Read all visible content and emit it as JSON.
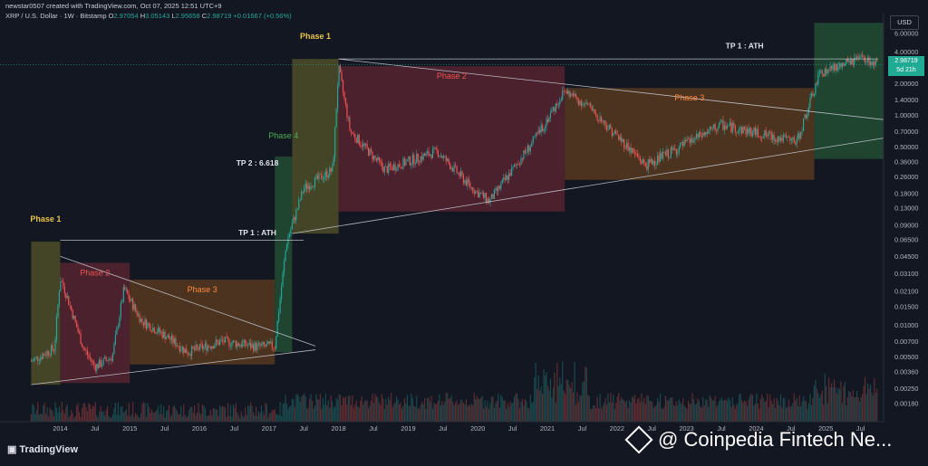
{
  "header": {
    "published": "newstar0507 created with TradingView.com, Oct 07, 2025 12:51 UTC+9",
    "symbol": "XRP / U.S. Dollar · 1W · Bitstamp",
    "open_label": "O",
    "open": "2.97054",
    "high_label": "H",
    "high": "3.05143",
    "low_label": "L",
    "low": "2.95658",
    "close_label": "C",
    "close": "2.98719",
    "change": "+0.01667 (+0.56%)"
  },
  "currency_button": "USD",
  "last_price": "2.98719",
  "countdown": "5d 21h",
  "footer": {
    "logo": "TradingView"
  },
  "watermark": "@ Coinpedia Fintech Ne...",
  "colors": {
    "up": "#26a69a",
    "down": "#ef5350",
    "background": "#131722",
    "phase1": "#6b6b2a",
    "phase2": "#7a2a38",
    "phase3": "#7a4a1e",
    "phase4": "#2a6a3c"
  },
  "chart_data": {
    "type": "candlestick",
    "title": "",
    "xlabel": "",
    "ylabel": "",
    "y_scale": "log",
    "ylim": [
      0.0012,
      8.0
    ],
    "y_ticks": [
      "6.00000",
      "4.00000",
      "2.98719",
      "2.00000",
      "1.40000",
      "1.00000",
      "0.70000",
      "0.50000",
      "0.36000",
      "0.26000",
      "0.18000",
      "0.13000",
      "0.09000",
      "0.06500",
      "0.04500",
      "0.03100",
      "0.02100",
      "0.01500",
      "0.01000",
      "0.00700",
      "0.00500",
      "0.00360",
      "0.00250",
      "0.00180"
    ],
    "x_ticks": [
      "2014",
      "Jul",
      "2015",
      "Jul",
      "2016",
      "Jul",
      "2017",
      "Jul",
      "2018",
      "Jul",
      "2019",
      "Jul",
      "2020",
      "Jul",
      "2021",
      "Jul",
      "2022",
      "Jul",
      "2023",
      "Jul",
      "2024",
      "Jul",
      "2025",
      "Jul"
    ],
    "price_path": [
      {
        "date": "2013-08",
        "price": 0.0045
      },
      {
        "date": "2013-12",
        "price": 0.006
      },
      {
        "date": "2014-01",
        "price": 0.028
      },
      {
        "date": "2014-02",
        "price": 0.02
      },
      {
        "date": "2014-05",
        "price": 0.006
      },
      {
        "date": "2014-07",
        "price": 0.004
      },
      {
        "date": "2014-10",
        "price": 0.005
      },
      {
        "date": "2014-12",
        "price": 0.022
      },
      {
        "date": "2015-03",
        "price": 0.011
      },
      {
        "date": "2015-07",
        "price": 0.008
      },
      {
        "date": "2015-11",
        "price": 0.0055
      },
      {
        "date": "2016-05",
        "price": 0.007
      },
      {
        "date": "2016-11",
        "price": 0.0062
      },
      {
        "date": "2017-02",
        "price": 0.0063
      },
      {
        "date": "2017-04",
        "price": 0.06
      },
      {
        "date": "2017-07",
        "price": 0.2
      },
      {
        "date": "2017-12",
        "price": 0.3
      },
      {
        "date": "2018-01",
        "price": 2.8
      },
      {
        "date": "2018-03",
        "price": 0.7
      },
      {
        "date": "2018-09",
        "price": 0.3
      },
      {
        "date": "2019-06",
        "price": 0.45
      },
      {
        "date": "2019-12",
        "price": 0.2
      },
      {
        "date": "2020-03",
        "price": 0.15
      },
      {
        "date": "2020-11",
        "price": 0.6
      },
      {
        "date": "2021-04",
        "price": 1.7
      },
      {
        "date": "2021-08",
        "price": 1.2
      },
      {
        "date": "2022-06",
        "price": 0.33
      },
      {
        "date": "2023-07",
        "price": 0.8
      },
      {
        "date": "2024-08",
        "price": 0.55
      },
      {
        "date": "2024-12",
        "price": 2.5
      },
      {
        "date": "2025-07",
        "price": 3.4
      },
      {
        "date": "2025-10",
        "price": 2.98719
      }
    ],
    "annotations": [
      {
        "label": "Phase 1",
        "start": "2013-08",
        "end": "2014-01",
        "low": 0.0027,
        "high": 0.062,
        "role": "phase1"
      },
      {
        "label": "Phase 2",
        "start": "2014-01",
        "end": "2015-01",
        "low": 0.0028,
        "high": 0.039,
        "role": "phase2"
      },
      {
        "label": "Phase 3",
        "start": "2015-01",
        "end": "2017-02",
        "low": 0.0042,
        "high": 0.027,
        "role": "phase3"
      },
      {
        "label": "Phase 4",
        "start": "2017-02",
        "end": "2017-05",
        "low": 0.0055,
        "high": 0.4,
        "role": "phase4"
      },
      {
        "label": "Phase 1",
        "start": "2017-05",
        "end": "2018-01",
        "low": 0.074,
        "high": 3.4,
        "role": "phase1"
      },
      {
        "label": "Phase 2",
        "start": "2018-01",
        "end": "2021-04",
        "low": 0.12,
        "high": 2.9,
        "role": "phase2"
      },
      {
        "label": "Phase 3",
        "start": "2021-04",
        "end": "2024-11",
        "low": 0.24,
        "high": 1.8,
        "role": "phase3"
      },
      {
        "label": "",
        "start": "2024-11",
        "end": "2025-12",
        "low": 0.38,
        "high": 7.5,
        "role": "phase4"
      }
    ],
    "labels": [
      {
        "text": "TP 2 : 6.618",
        "date": "2016-11",
        "price": 0.33
      },
      {
        "text": "TP 1 : ATH",
        "date": "2016-11",
        "price": 0.071
      },
      {
        "text": "TP 1 : ATH",
        "date": "2023-11",
        "price": 4.3
      }
    ]
  }
}
